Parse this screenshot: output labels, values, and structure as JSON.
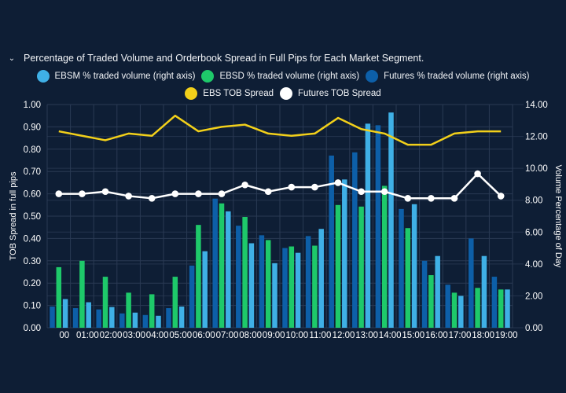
{
  "panel": {
    "collapse_icon": "chevron-down-icon",
    "title": "Percentage of Traded Volume and Orderbook Spread in Full Pips for Each Market Segment."
  },
  "colors": {
    "background": "#0e1e35",
    "grid": "#2a3a54",
    "ebsm": "#3fb0e6",
    "ebsd": "#1ec96a",
    "futures": "#0d5fa8",
    "ebs_tob": "#f2d01a",
    "futures_tob": "#ffffff"
  },
  "chart_data": {
    "type": "bar",
    "title": "Percentage of Traded Volume and Orderbook Spread in Full Pips for Each Market Segment.",
    "categories": [
      "00",
      "01:00",
      "02:00",
      "03:00",
      "04:00",
      "05:00",
      "06:00",
      "07:00",
      "08:00",
      "09:00",
      "10:00",
      "11:00",
      "12:00",
      "13:00",
      "14:00",
      "15:00",
      "16:00",
      "17:00",
      "18:00",
      "19:00"
    ],
    "ylabel": "TOB Spread in full pips",
    "ylim": [
      0,
      1
    ],
    "yticks": [
      "0.00",
      "0.10",
      "0.20",
      "0.30",
      "0.40",
      "0.50",
      "0.60",
      "0.70",
      "0.80",
      "0.90",
      "1.00"
    ],
    "y2label": "Volume Percentage of Day",
    "y2lim": [
      0,
      14
    ],
    "y2ticks": [
      "0.00",
      "2.00",
      "4.00",
      "6.00",
      "8.00",
      "10.00",
      "12.00",
      "14.00"
    ],
    "grid": true,
    "legend_position": "top-center",
    "bar_series": [
      {
        "name": "Futures % traded volume (right axis)",
        "key": "futures",
        "axis": "right",
        "values": [
          1.33,
          1.23,
          1.15,
          0.9,
          0.8,
          1.23,
          3.9,
          8.1,
          6.4,
          5.8,
          5.0,
          5.75,
          10.8,
          11.0,
          12.7,
          7.45,
          4.2,
          2.7,
          5.6,
          3.2
        ]
      },
      {
        "name": "EBSD % traded volume (right axis)",
        "key": "ebsd",
        "axis": "right",
        "values": [
          3.8,
          4.2,
          3.2,
          2.2,
          2.1,
          3.2,
          6.45,
          7.8,
          6.95,
          5.5,
          5.1,
          5.15,
          7.7,
          7.6,
          8.9,
          6.25,
          3.3,
          2.2,
          2.5,
          2.4
        ]
      },
      {
        "name": "EBSM % traded volume (right axis)",
        "key": "ebsm",
        "axis": "right",
        "values": [
          1.8,
          1.6,
          1.3,
          0.95,
          0.75,
          1.33,
          4.8,
          7.3,
          5.3,
          4.05,
          4.7,
          6.2,
          9.3,
          12.8,
          13.5,
          7.75,
          4.5,
          2.0,
          4.5,
          2.4
        ]
      }
    ],
    "line_series": [
      {
        "name": "EBS TOB Spread",
        "key": "ebs_tob",
        "axis": "left",
        "markers": false,
        "values": [
          0.88,
          0.86,
          0.84,
          0.87,
          0.86,
          0.95,
          0.88,
          0.9,
          0.91,
          0.87,
          0.86,
          0.87,
          0.94,
          0.89,
          0.87,
          0.82,
          0.82,
          0.87,
          0.88,
          0.88
        ]
      },
      {
        "name": "Futures TOB Spread",
        "key": "futures_tob",
        "axis": "left",
        "markers": true,
        "values": [
          0.6,
          0.6,
          0.61,
          0.59,
          0.58,
          0.6,
          0.6,
          0.6,
          0.64,
          0.61,
          0.63,
          0.63,
          0.65,
          0.61,
          0.61,
          0.58,
          0.58,
          0.58,
          0.69,
          0.59
        ]
      }
    ]
  },
  "legend": [
    {
      "label": "EBSM % traded volume (right axis)",
      "key": "ebsm"
    },
    {
      "label": "EBSD % traded volume (right axis)",
      "key": "ebsd"
    },
    {
      "label": "Futures % traded volume (right axis)",
      "key": "futures"
    },
    {
      "label": "EBS TOB Spread",
      "key": "ebs_tob"
    },
    {
      "label": "Futures TOB Spread",
      "key": "futures_tob"
    }
  ]
}
